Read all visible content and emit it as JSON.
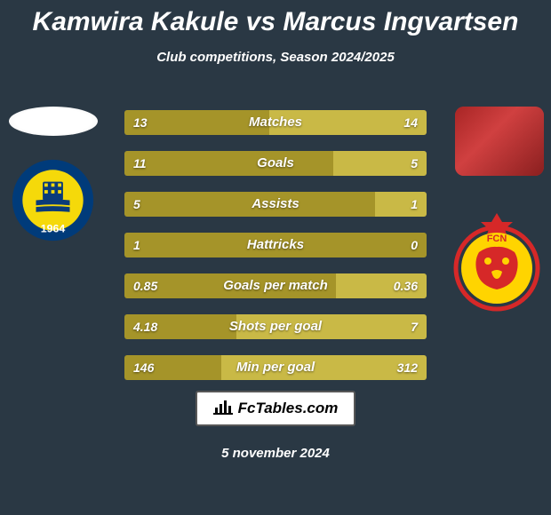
{
  "title": "Kamwira Kakule vs Marcus Ingvartsen",
  "subtitle": "Club competitions, Season 2024/2025",
  "footer_date": "5 november 2024",
  "fctables_label": "FcTables.com",
  "colors": {
    "background": "#2a3844",
    "bar_left": "#a59429",
    "bar_right": "#c9b946",
    "text": "#ffffff"
  },
  "club_left": {
    "name": "Brøndby IF",
    "year": "1964",
    "ring_color": "#003b7a",
    "inner_color": "#f5d90a"
  },
  "club_right": {
    "name": "FC Nordsjælland",
    "text": "FCN",
    "primary": "#ffd400",
    "accent": "#d62828"
  },
  "stats": [
    {
      "label": "Matches",
      "left_val": "13",
      "right_val": "14",
      "left_pct": 48,
      "right_pct": 52
    },
    {
      "label": "Goals",
      "left_val": "11",
      "right_val": "5",
      "left_pct": 69,
      "right_pct": 31
    },
    {
      "label": "Assists",
      "left_val": "5",
      "right_val": "1",
      "left_pct": 83,
      "right_pct": 17
    },
    {
      "label": "Hattricks",
      "left_val": "1",
      "right_val": "0",
      "left_pct": 100,
      "right_pct": 0
    },
    {
      "label": "Goals per match",
      "left_val": "0.85",
      "right_val": "0.36",
      "left_pct": 70,
      "right_pct": 30
    },
    {
      "label": "Shots per goal",
      "left_val": "4.18",
      "right_val": "7",
      "left_pct": 37,
      "right_pct": 63
    },
    {
      "label": "Min per goal",
      "left_val": "146",
      "right_val": "312",
      "left_pct": 32,
      "right_pct": 68
    }
  ]
}
